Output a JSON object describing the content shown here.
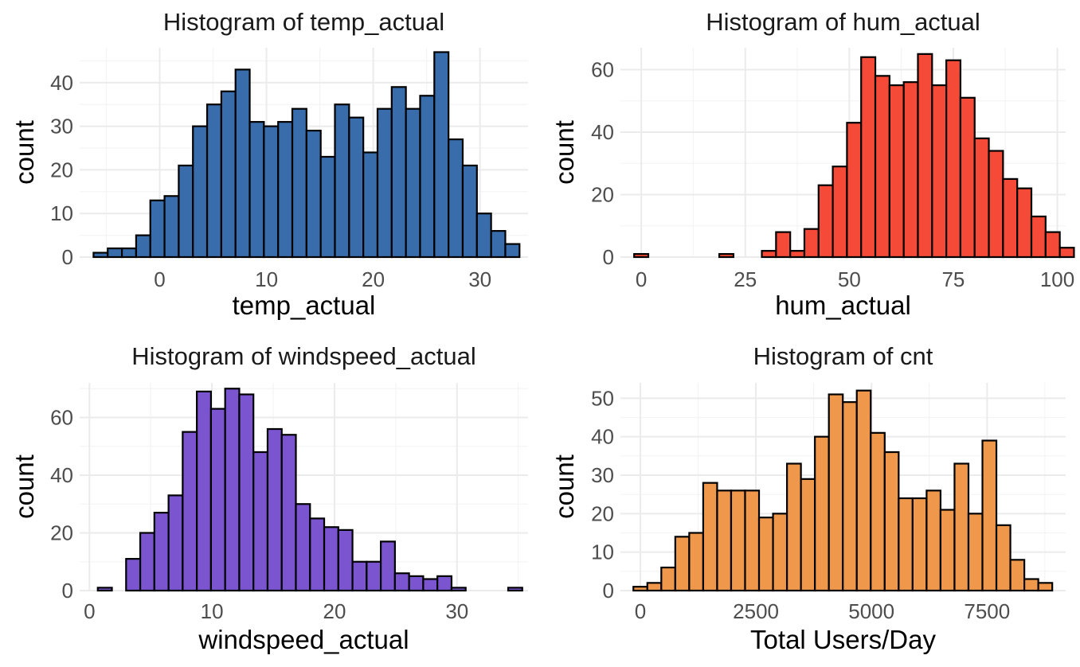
{
  "chart_data": [
    {
      "type": "bar",
      "title": "Histogram of temp_actual",
      "xlabel": "temp_actual",
      "ylabel": "count",
      "xlim": [
        -7.5,
        34.5
      ],
      "ylim": [
        0,
        48
      ],
      "xticks": [
        0,
        10,
        20,
        30
      ],
      "yticks": [
        0,
        10,
        20,
        30,
        40
      ],
      "grid": true,
      "fill_color": "#386CAB",
      "bin_start": -6.2,
      "bin_width": 1.33,
      "values": [
        1,
        2,
        2,
        5,
        13,
        14,
        21,
        30,
        35,
        38,
        43,
        31,
        30,
        31,
        34,
        29,
        23,
        35,
        32,
        24,
        34,
        39,
        34,
        37,
        47,
        27,
        21,
        10,
        6,
        3
      ]
    },
    {
      "type": "bar",
      "title": "Histogram of hum_actual",
      "xlabel": "hum_actual",
      "ylabel": "count",
      "xlim": [
        -5,
        102
      ],
      "ylim": [
        0,
        67
      ],
      "xticks": [
        0,
        25,
        50,
        75,
        100
      ],
      "yticks": [
        0,
        20,
        40,
        60
      ],
      "grid": true,
      "fill_color": "#F44A37",
      "bin_start": -1.71,
      "bin_width": 3.41,
      "values": [
        1,
        0,
        0,
        0,
        0,
        0,
        1,
        0,
        0,
        2,
        8,
        2,
        9,
        23,
        29,
        43,
        64,
        58,
        55,
        56,
        65,
        55,
        63,
        51,
        38,
        34,
        25,
        22,
        13,
        8,
        3
      ]
    },
    {
      "type": "bar",
      "title": "Histogram of windspeed_actual",
      "xlabel": "windspeed_actual",
      "ylabel": "count",
      "xlim": [
        -0.8,
        35.8
      ],
      "ylim": [
        0,
        72
      ],
      "xticks": [
        0,
        10,
        20,
        30
      ],
      "yticks": [
        0,
        20,
        40,
        60
      ],
      "grid": true,
      "fill_color": "#7B54CF",
      "bin_start": 0.68,
      "bin_width": 1.155,
      "values": [
        1,
        0,
        11,
        20,
        27,
        33,
        55,
        69,
        63,
        70,
        68,
        48,
        56,
        54,
        30,
        25,
        22,
        21,
        10,
        10,
        17,
        6,
        5,
        4,
        5,
        1,
        0,
        0,
        0,
        1
      ]
    },
    {
      "type": "bar",
      "title": "Histogram of cnt",
      "xlabel": "Total Users/Day",
      "ylabel": "count",
      "xlim": [
        -430,
        9200
      ],
      "ylim": [
        0,
        54
      ],
      "xticks": [
        0,
        2500,
        5000,
        7500
      ],
      "yticks": [
        0,
        10,
        20,
        30,
        40,
        50
      ],
      "grid": true,
      "fill_color": "#EF974B",
      "bin_start": -150,
      "bin_width": 302,
      "values": [
        1,
        2,
        6,
        14,
        15,
        28,
        26,
        26,
        26,
        19,
        20,
        33,
        29,
        40,
        51,
        49,
        52,
        41,
        36,
        24,
        24,
        26,
        21,
        33,
        20,
        39,
        17,
        8,
        3,
        2
      ]
    }
  ]
}
